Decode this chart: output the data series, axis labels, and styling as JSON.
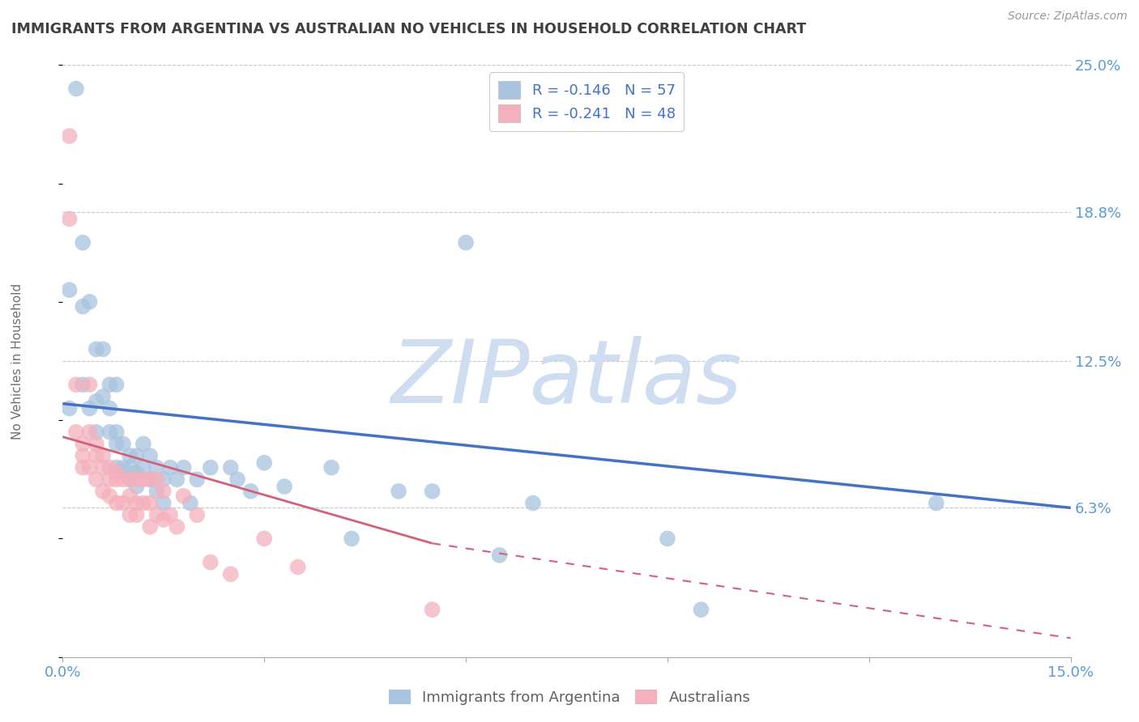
{
  "title": "IMMIGRANTS FROM ARGENTINA VS AUSTRALIAN NO VEHICLES IN HOUSEHOLD CORRELATION CHART",
  "source": "Source: ZipAtlas.com",
  "ylabel": "No Vehicles in Household",
  "legend_label_blue": "Immigrants from Argentina",
  "legend_label_pink": "Australians",
  "legend_R_blue": "R = -0.146",
  "legend_N_blue": "N = 57",
  "legend_R_pink": "R = -0.241",
  "legend_N_pink": "N = 48",
  "xlim": [
    0.0,
    0.15
  ],
  "ylim": [
    0.0,
    0.25
  ],
  "xtick_vals": [
    0.0,
    0.03,
    0.06,
    0.09,
    0.12,
    0.15
  ],
  "xtick_labels": [
    "0.0%",
    "",
    "",
    "",
    "",
    "15.0%"
  ],
  "ytick_vals": [
    0.0,
    0.063,
    0.125,
    0.188,
    0.25
  ],
  "ytick_labels": [
    "",
    "6.3%",
    "12.5%",
    "18.8%",
    "25.0%"
  ],
  "color_blue": "#a8c4e0",
  "color_pink": "#f4b0bc",
  "color_line_blue": "#4472c4",
  "color_line_pink": "#d4607a",
  "color_axis": "#5b9bd5",
  "color_title": "#404040",
  "watermark_text": "ZIPatlas",
  "watermark_color": "#cfddf0",
  "blue_x": [
    0.001,
    0.001,
    0.002,
    0.003,
    0.003,
    0.003,
    0.004,
    0.004,
    0.005,
    0.005,
    0.005,
    0.006,
    0.006,
    0.007,
    0.007,
    0.007,
    0.008,
    0.008,
    0.008,
    0.008,
    0.009,
    0.009,
    0.01,
    0.01,
    0.01,
    0.011,
    0.011,
    0.011,
    0.012,
    0.012,
    0.013,
    0.013,
    0.014,
    0.014,
    0.015,
    0.015,
    0.016,
    0.017,
    0.018,
    0.019,
    0.02,
    0.022,
    0.025,
    0.026,
    0.028,
    0.03,
    0.033,
    0.04,
    0.043,
    0.05,
    0.055,
    0.06,
    0.065,
    0.07,
    0.09,
    0.095,
    0.13
  ],
  "blue_y": [
    0.155,
    0.105,
    0.24,
    0.175,
    0.148,
    0.115,
    0.15,
    0.105,
    0.13,
    0.108,
    0.095,
    0.13,
    0.11,
    0.115,
    0.105,
    0.095,
    0.115,
    0.095,
    0.09,
    0.08,
    0.09,
    0.08,
    0.085,
    0.08,
    0.075,
    0.085,
    0.078,
    0.072,
    0.09,
    0.08,
    0.085,
    0.075,
    0.08,
    0.07,
    0.075,
    0.065,
    0.08,
    0.075,
    0.08,
    0.065,
    0.075,
    0.08,
    0.08,
    0.075,
    0.07,
    0.082,
    0.072,
    0.08,
    0.05,
    0.07,
    0.07,
    0.175,
    0.043,
    0.065,
    0.05,
    0.02,
    0.065
  ],
  "pink_x": [
    0.001,
    0.001,
    0.002,
    0.002,
    0.003,
    0.003,
    0.003,
    0.004,
    0.004,
    0.004,
    0.005,
    0.005,
    0.005,
    0.006,
    0.006,
    0.006,
    0.007,
    0.007,
    0.007,
    0.008,
    0.008,
    0.008,
    0.009,
    0.009,
    0.01,
    0.01,
    0.01,
    0.011,
    0.011,
    0.011,
    0.012,
    0.012,
    0.013,
    0.013,
    0.013,
    0.014,
    0.014,
    0.015,
    0.015,
    0.016,
    0.017,
    0.018,
    0.02,
    0.022,
    0.025,
    0.03,
    0.035,
    0.055
  ],
  "pink_y": [
    0.22,
    0.185,
    0.115,
    0.095,
    0.09,
    0.085,
    0.08,
    0.115,
    0.095,
    0.08,
    0.09,
    0.085,
    0.075,
    0.085,
    0.08,
    0.07,
    0.08,
    0.075,
    0.068,
    0.078,
    0.075,
    0.065,
    0.075,
    0.065,
    0.075,
    0.068,
    0.06,
    0.075,
    0.065,
    0.06,
    0.075,
    0.065,
    0.075,
    0.065,
    0.055,
    0.075,
    0.06,
    0.07,
    0.058,
    0.06,
    0.055,
    0.068,
    0.06,
    0.04,
    0.035,
    0.05,
    0.038,
    0.02
  ],
  "blue_trend": [
    0.0,
    0.15,
    0.107,
    0.063
  ],
  "pink_trend_solid": [
    0.0,
    0.055,
    0.093,
    0.048
  ],
  "pink_trend_dash": [
    0.055,
    0.15,
    0.048,
    0.008
  ],
  "grid_color": "#c8c8c8",
  "bg_color": "#ffffff"
}
